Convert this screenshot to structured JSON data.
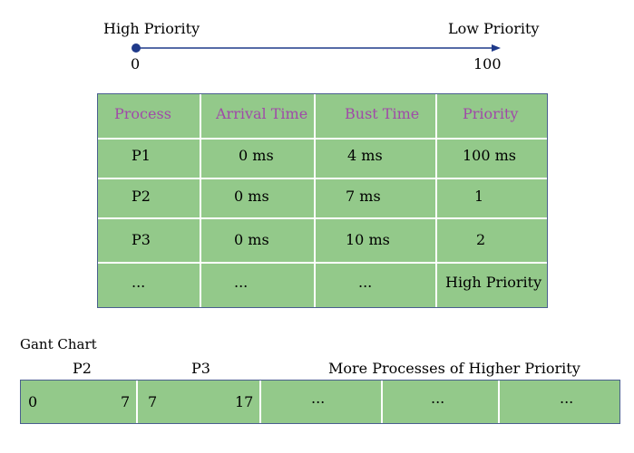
{
  "priority_scale": {
    "high_label": "High Priority",
    "low_label": "Low Priority",
    "min_value": "0",
    "max_value": "100",
    "line_color": "#1f3a8a"
  },
  "table": {
    "headers": [
      "Process",
      "Arrival Time",
      "Bust Time",
      "Priority"
    ],
    "rows": [
      [
        "P1",
        "0 ms",
        "4 ms",
        "100 ms"
      ],
      [
        "P2",
        "0 ms",
        "7 ms",
        "1"
      ],
      [
        "P3",
        "0 ms",
        "10 ms",
        "2"
      ],
      [
        "...",
        "...",
        "...",
        "High Priority"
      ]
    ],
    "fill_color": "#93c98a",
    "header_text_color": "#a04aa8"
  },
  "gantt": {
    "title": "Gant Chart",
    "labels": {
      "p2": "P2",
      "p3": "P3",
      "more": "More Processes of Higher Priority"
    },
    "segments": [
      {
        "start": "0",
        "end": "7"
      },
      {
        "start": "7",
        "end": "17"
      },
      {
        "text": "..."
      },
      {
        "text": "..."
      },
      {
        "text": "..."
      }
    ]
  }
}
